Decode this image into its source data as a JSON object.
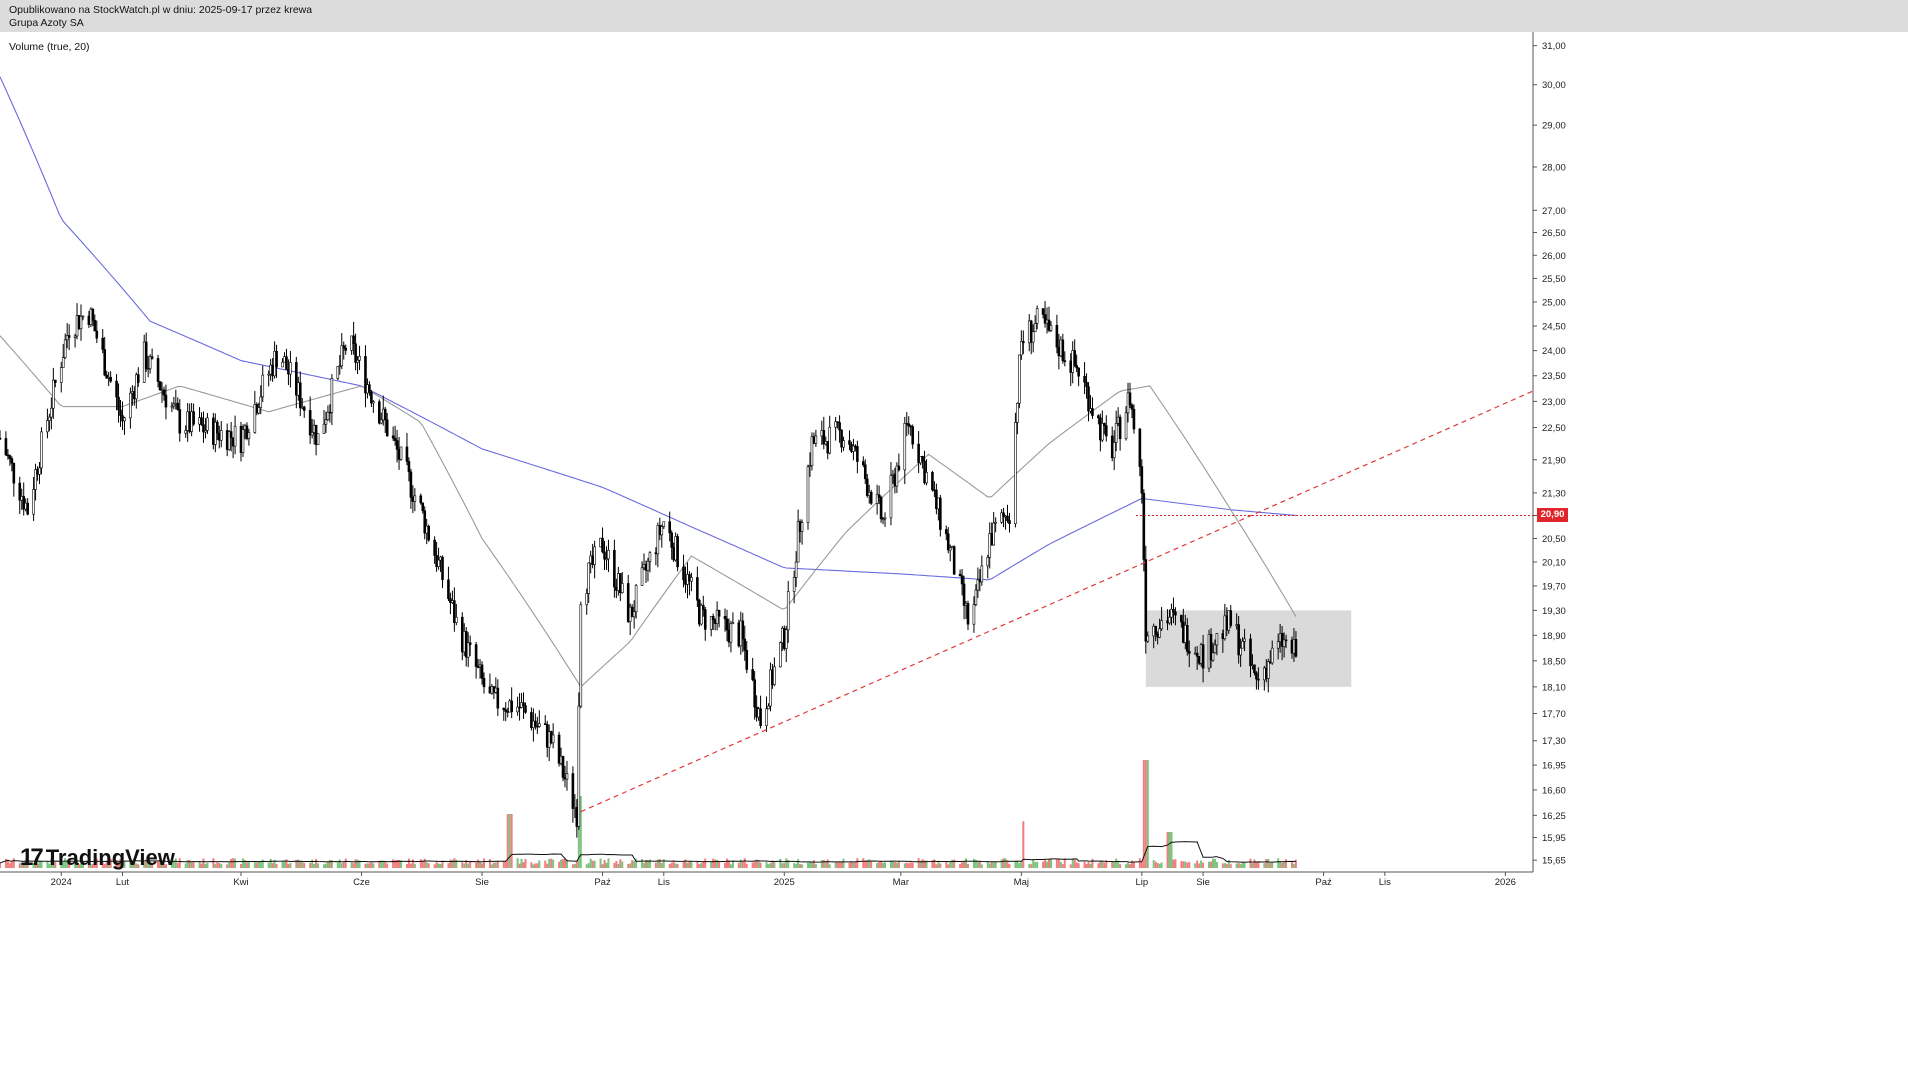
{
  "header": {
    "published_line": "Opublikowano na StockWatch.pl w dniu: 2025-09-17 przez krewa",
    "instrument": "Grupa Azoty SA"
  },
  "indicator_label": "Volume (true, 20)",
  "logo": {
    "mark": "17",
    "text": "TradingView"
  },
  "colors": {
    "up_volume": "#7cc47f",
    "down_volume": "#f08080",
    "candle": "#000000",
    "ma_long": "#6a6ae0",
    "ma_short": "#9a9a9a",
    "trendline": "#e03a3a",
    "price_line": "#d02020",
    "range_box": "#d8d8d8"
  },
  "chart_data": {
    "type": "candlestick",
    "title": "",
    "y_axis": {
      "scale": "log",
      "range": [
        15.6,
        31.2
      ],
      "ticks": [
        "31,00",
        "30,00",
        "29,00",
        "28,00",
        "27,00",
        "26,50",
        "26,00",
        "25,50",
        "25,00",
        "24,50",
        "24,00",
        "23,50",
        "23,00",
        "22,50",
        "21,90",
        "21,30",
        "20,90",
        "20,50",
        "20,10",
        "19,70",
        "19,30",
        "18,90",
        "18,50",
        "18,10",
        "17,70",
        "17,30",
        "16,95",
        "16,60",
        "16,25",
        "15,95",
        "15,65"
      ]
    },
    "x_axis": {
      "range": [
        "2023-12-01",
        "2026-01-15"
      ],
      "ticks": [
        {
          "label": "2024",
          "date": "2024-01-01"
        },
        {
          "label": "Lut",
          "date": "2024-02-01"
        },
        {
          "label": "Kwi",
          "date": "2024-04-01"
        },
        {
          "label": "Cze",
          "date": "2024-06-01"
        },
        {
          "label": "Sie",
          "date": "2024-08-01"
        },
        {
          "label": "Paź",
          "date": "2024-10-01"
        },
        {
          "label": "Lis",
          "date": "2024-11-01"
        },
        {
          "label": "2025",
          "date": "2025-01-01"
        },
        {
          "label": "Mar",
          "date": "2025-03-01"
        },
        {
          "label": "Maj",
          "date": "2025-05-01"
        },
        {
          "label": "Lip",
          "date": "2025-07-01"
        },
        {
          "label": "Sie",
          "date": "2025-08-01"
        },
        {
          "label": "Paź",
          "date": "2025-10-01"
        },
        {
          "label": "Lis",
          "date": "2025-11-01"
        },
        {
          "label": "2026",
          "date": "2026-01-01"
        }
      ]
    },
    "price_path": [
      {
        "date": "2023-12-01",
        "close": 22.3
      },
      {
        "date": "2023-12-15",
        "close": 21.0
      },
      {
        "date": "2024-01-05",
        "close": 24.5
      },
      {
        "date": "2024-01-15",
        "close": 24.8
      },
      {
        "date": "2024-02-01",
        "close": 22.6
      },
      {
        "date": "2024-02-12",
        "close": 23.9
      },
      {
        "date": "2024-03-01",
        "close": 22.6
      },
      {
        "date": "2024-04-01",
        "close": 22.3
      },
      {
        "date": "2024-04-20",
        "close": 24.0
      },
      {
        "date": "2024-05-10",
        "close": 22.3
      },
      {
        "date": "2024-05-25",
        "close": 24.2
      },
      {
        "date": "2024-06-15",
        "close": 22.4
      },
      {
        "date": "2024-07-01",
        "close": 21.0
      },
      {
        "date": "2024-07-20",
        "close": 19.0
      },
      {
        "date": "2024-08-05",
        "close": 17.9
      },
      {
        "date": "2024-08-20",
        "close": 17.8
      },
      {
        "date": "2024-09-05",
        "close": 17.3
      },
      {
        "date": "2024-09-18",
        "close": 16.3
      },
      {
        "date": "2024-09-20",
        "close": 19.6
      },
      {
        "date": "2024-10-01",
        "close": 20.4
      },
      {
        "date": "2024-10-15",
        "close": 19.2
      },
      {
        "date": "2024-11-01",
        "close": 20.8
      },
      {
        "date": "2024-11-20",
        "close": 19.2
      },
      {
        "date": "2024-12-10",
        "close": 18.9
      },
      {
        "date": "2024-12-20",
        "close": 17.6
      },
      {
        "date": "2025-01-01",
        "close": 18.9
      },
      {
        "date": "2025-01-15",
        "close": 22.2
      },
      {
        "date": "2025-02-01",
        "close": 22.4
      },
      {
        "date": "2025-02-20",
        "close": 20.8
      },
      {
        "date": "2025-03-05",
        "close": 22.6
      },
      {
        "date": "2025-03-25",
        "close": 20.4
      },
      {
        "date": "2025-04-05",
        "close": 19.0
      },
      {
        "date": "2025-04-15",
        "close": 20.5
      },
      {
        "date": "2025-04-25",
        "close": 21.0
      },
      {
        "date": "2025-05-01",
        "close": 24.2
      },
      {
        "date": "2025-05-10",
        "close": 24.6
      },
      {
        "date": "2025-05-30",
        "close": 23.6
      },
      {
        "date": "2025-06-15",
        "close": 22.0
      },
      {
        "date": "2025-06-25",
        "close": 23.1
      },
      {
        "date": "2025-07-01",
        "close": 21.4
      },
      {
        "date": "2025-07-03",
        "close": 19.0
      },
      {
        "date": "2025-07-15",
        "close": 19.2
      },
      {
        "date": "2025-08-01",
        "close": 18.6
      },
      {
        "date": "2025-08-15",
        "close": 19.1
      },
      {
        "date": "2025-08-28",
        "close": 18.2
      },
      {
        "date": "2025-09-10",
        "close": 18.8
      },
      {
        "date": "2025-09-17",
        "close": 18.6
      }
    ],
    "moving_average_long": [
      {
        "date": "2023-12-01",
        "value": 30.2
      },
      {
        "date": "2024-01-01",
        "value": 26.8
      },
      {
        "date": "2024-02-15",
        "value": 24.6
      },
      {
        "date": "2024-04-01",
        "value": 23.8
      },
      {
        "date": "2024-06-01",
        "value": 23.3
      },
      {
        "date": "2024-08-01",
        "value": 22.1
      },
      {
        "date": "2024-10-01",
        "value": 21.4
      },
      {
        "date": "2024-11-15",
        "value": 20.7
      },
      {
        "date": "2025-01-01",
        "value": 20.0
      },
      {
        "date": "2025-03-01",
        "value": 19.9
      },
      {
        "date": "2025-04-15",
        "value": 19.8
      },
      {
        "date": "2025-05-15",
        "value": 20.4
      },
      {
        "date": "2025-07-01",
        "value": 21.2
      },
      {
        "date": "2025-08-15",
        "value": 21.0
      },
      {
        "date": "2025-09-17",
        "value": 20.9
      }
    ],
    "moving_average_short": [
      {
        "date": "2023-12-01",
        "value": 24.3
      },
      {
        "date": "2024-01-01",
        "value": 22.9
      },
      {
        "date": "2024-02-01",
        "value": 22.9
      },
      {
        "date": "2024-03-01",
        "value": 23.3
      },
      {
        "date": "2024-04-15",
        "value": 22.8
      },
      {
        "date": "2024-06-01",
        "value": 23.3
      },
      {
        "date": "2024-07-01",
        "value": 22.6
      },
      {
        "date": "2024-08-01",
        "value": 20.5
      },
      {
        "date": "2024-09-20",
        "value": 18.1
      },
      {
        "date": "2024-10-15",
        "value": 18.8
      },
      {
        "date": "2024-11-15",
        "value": 20.2
      },
      {
        "date": "2025-01-01",
        "value": 19.3
      },
      {
        "date": "2025-02-01",
        "value": 20.6
      },
      {
        "date": "2025-03-15",
        "value": 22.0
      },
      {
        "date": "2025-04-15",
        "value": 21.2
      },
      {
        "date": "2025-05-15",
        "value": 22.2
      },
      {
        "date": "2025-06-20",
        "value": 23.2
      },
      {
        "date": "2025-07-05",
        "value": 23.3
      },
      {
        "date": "2025-08-15",
        "value": 21.0
      },
      {
        "date": "2025-09-17",
        "value": 19.2
      }
    ],
    "trendline": {
      "from": {
        "date": "2024-09-20",
        "value": 16.3
      },
      "to": {
        "date": "2026-01-15",
        "value": 23.2
      },
      "style": "dashed"
    },
    "horizontal_line": {
      "value": 20.9,
      "label": "20,90",
      "from_date": "2025-06-28"
    },
    "range_box": {
      "from_date": "2025-07-03",
      "to_date": "2025-10-15",
      "low": 18.1,
      "high": 19.3
    },
    "volume": {
      "label": "Volume (true, 20)",
      "spikes": [
        {
          "date": "2024-08-15",
          "relative": 0.3
        },
        {
          "date": "2024-09-20",
          "relative": 0.4
        },
        {
          "date": "2025-05-03",
          "relative": 0.26
        },
        {
          "date": "2025-07-03",
          "relative": 0.6
        },
        {
          "date": "2025-07-15",
          "relative": 0.2
        }
      ]
    }
  }
}
